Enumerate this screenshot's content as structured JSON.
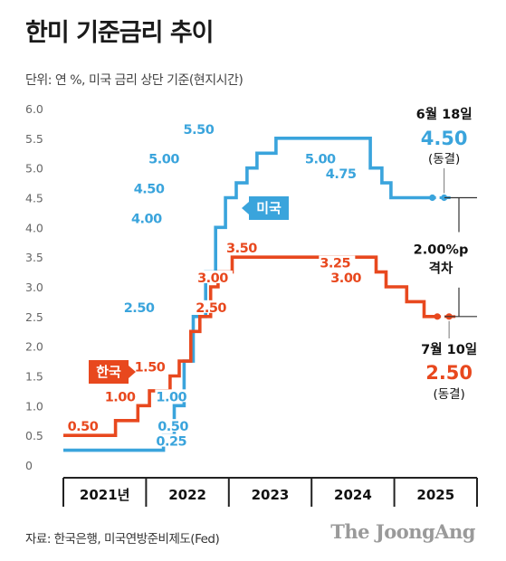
{
  "header": {
    "title": "한미 기준금리 추이",
    "subtitle": "단위: 연 %, 미국 금리 상단 기준(현지시간)"
  },
  "footer": {
    "source": "자료: 한국은행, 미국연방준비제도(Fed)",
    "logo": "The JoongAng"
  },
  "colors": {
    "us": "#3aa4dc",
    "kr": "#e8481e",
    "axis": "#222222",
    "grid": "#bbbbbb"
  },
  "chart_data": {
    "type": "line",
    "step": true,
    "ylim": [
      0,
      6.0
    ],
    "yticks": [
      0,
      0.5,
      1.0,
      1.5,
      2.0,
      2.5,
      3.0,
      3.5,
      4.0,
      4.5,
      5.0,
      5.5,
      6.0
    ],
    "ytick_labels": [
      "0",
      "0.5",
      "1.0",
      "1.5",
      "2.0",
      "2.5",
      "3.0",
      "3.5",
      "4.0",
      "4.5",
      "5.0",
      "5.5",
      "6.0"
    ],
    "xlim": [
      2021.0,
      2026.0
    ],
    "x_categories": [
      "2021년",
      "2022",
      "2023",
      "2024",
      "2025"
    ],
    "grid": false,
    "series": [
      {
        "key": "us",
        "name": "미국",
        "steps": [
          {
            "x": 2021.0,
            "y": 0.25
          },
          {
            "x": 2022.21,
            "y": 0.5
          },
          {
            "x": 2022.34,
            "y": 1.0
          },
          {
            "x": 2022.46,
            "y": 1.75
          },
          {
            "x": 2022.57,
            "y": 2.5
          },
          {
            "x": 2022.72,
            "y": 3.25
          },
          {
            "x": 2022.84,
            "y": 4.0
          },
          {
            "x": 2022.96,
            "y": 4.5
          },
          {
            "x": 2023.09,
            "y": 4.75
          },
          {
            "x": 2023.22,
            "y": 5.0
          },
          {
            "x": 2023.34,
            "y": 5.25
          },
          {
            "x": 2023.57,
            "y": 5.5
          },
          {
            "x": 2024.71,
            "y": 5.0
          },
          {
            "x": 2024.85,
            "y": 4.75
          },
          {
            "x": 2024.96,
            "y": 4.5
          },
          {
            "x": 2025.46,
            "y": 4.5
          }
        ],
        "data_labels": [
          {
            "x": 2022.12,
            "y": 0.25,
            "text": "0.25"
          },
          {
            "x": 2022.14,
            "y": 0.5,
            "text": "0.50"
          },
          {
            "x": 2022.12,
            "y": 1.0,
            "text": "1.00"
          },
          {
            "x": 2021.73,
            "y": 2.5,
            "text": "2.50"
          },
          {
            "x": 2021.82,
            "y": 4.0,
            "text": "4.00"
          },
          {
            "x": 2021.85,
            "y": 4.5,
            "text": "4.50"
          },
          {
            "x": 2022.03,
            "y": 5.0,
            "text": "5.00"
          },
          {
            "x": 2022.45,
            "y": 5.5,
            "text": "5.50"
          },
          {
            "x": 2023.92,
            "y": 5.0,
            "text": "5.00"
          },
          {
            "x": 2024.17,
            "y": 4.75,
            "text": "4.75"
          }
        ]
      },
      {
        "key": "kr",
        "name": "한국",
        "steps": [
          {
            "x": 2021.0,
            "y": 0.5
          },
          {
            "x": 2021.63,
            "y": 0.75
          },
          {
            "x": 2021.9,
            "y": 1.0
          },
          {
            "x": 2022.04,
            "y": 1.25
          },
          {
            "x": 2022.29,
            "y": 1.5
          },
          {
            "x": 2022.4,
            "y": 1.75
          },
          {
            "x": 2022.54,
            "y": 2.25
          },
          {
            "x": 2022.65,
            "y": 2.5
          },
          {
            "x": 2022.78,
            "y": 3.0
          },
          {
            "x": 2022.87,
            "y": 3.25
          },
          {
            "x": 2023.04,
            "y": 3.5
          },
          {
            "x": 2024.78,
            "y": 3.25
          },
          {
            "x": 2024.9,
            "y": 3.0
          },
          {
            "x": 2025.15,
            "y": 2.75
          },
          {
            "x": 2025.36,
            "y": 2.5
          },
          {
            "x": 2025.52,
            "y": 2.5
          }
        ],
        "data_labels": [
          {
            "x": 2021.05,
            "y": 0.5,
            "text": "0.50"
          },
          {
            "x": 2021.5,
            "y": 1.0,
            "text": "1.00"
          },
          {
            "x": 2021.86,
            "y": 1.5,
            "text": "1.50"
          },
          {
            "x": 2022.6,
            "y": 2.5,
            "text": "2.50"
          },
          {
            "x": 2022.62,
            "y": 3.0,
            "text": "3.00"
          },
          {
            "x": 2022.97,
            "y": 3.5,
            "text": "3.50"
          },
          {
            "x": 2024.1,
            "y": 3.25,
            "text": "3.25"
          },
          {
            "x": 2024.23,
            "y": 3.0,
            "text": "3.00"
          }
        ]
      }
    ],
    "annotations": {
      "us_latest": {
        "date": "6월 18일",
        "value": "4.50",
        "note": "(동결)"
      },
      "kr_latest": {
        "date": "7월 10일",
        "value": "2.50",
        "note": "(동결)"
      },
      "gap": {
        "value": "2.00%p",
        "label": "격차"
      }
    }
  }
}
